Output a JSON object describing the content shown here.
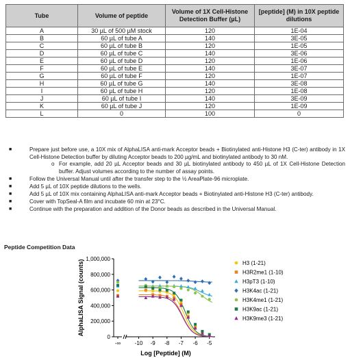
{
  "table": {
    "headers": [
      "Tube",
      "Volume of peptide",
      "Volume of 1X Cell-Histone Detection Buffer (µL)",
      "[peptide] (M) in 10X peptide dilutions"
    ],
    "rows": [
      [
        "A",
        "30 µL of 500 µM stock",
        "120",
        "1E-04"
      ],
      [
        "B",
        "60 µL of tube A",
        "140",
        "3E-05"
      ],
      [
        "C",
        "60 µL of tube B",
        "120",
        "1E-05"
      ],
      [
        "D",
        "60 µL of tube C",
        "140",
        "3E-06"
      ],
      [
        "E",
        "60 µL of tube D",
        "120",
        "1E-06"
      ],
      [
        "F",
        "60 µL of tube E",
        "140",
        "3E-07"
      ],
      [
        "G",
        "60 µL of tube F",
        "120",
        "1E-07"
      ],
      [
        "H",
        "60 µL of tube G",
        "140",
        "3E-08"
      ],
      [
        "I",
        "60 µL of tube H",
        "120",
        "1E-08"
      ],
      [
        "J",
        "60 µL of tube I",
        "140",
        "3E-09"
      ],
      [
        "K",
        "60 µL of tube J",
        "120",
        "1E-09"
      ],
      [
        "L",
        "0",
        "100",
        "0"
      ]
    ]
  },
  "steps": [
    "Prepare just before use, a 10X mix of AlphaLISA anti-mark Acceptor beads + Biotinylated anti-Histone H3 (C-ter) antibody in 1X Cell-Histone Detection buffer by diluting Acceptor beads to 200 µg/mL and biotinylated antibody to 30 nM.",
    "Follow the Universal Manual until after the transfer step to the ½ AreaPlate-96 microplate.",
    "Add 5 µL of 10X peptide dilutions to the wells.",
    "Add 5 µL of 10X mix containing AlphaLISA anti-mark Acceptor beads + Biotinylated anti-Histone H3 (C-ter) antibody.",
    "Cover with TopSeal-A film and incubate 60 min at 23°C.",
    "Continue with the preparation and addition of the Donor beads as described in the Universal Manual."
  ],
  "substep": "For example, add 20 µL Acceptor beads and 30 µL biotinylated antibody to 450 µL of 1X Cell-Histone Detection buffer. Adjust volumes according to the number of assay points.",
  "section_title": "Peptide Competition Data",
  "chart_data": {
    "type": "scatter",
    "xlabel": "Log [Peptide] (M)",
    "ylabel": "AlphaLISA Signal (counts)",
    "xlim": [
      -10.8,
      -4.6
    ],
    "ylim": [
      0,
      1000000
    ],
    "x_ticks": [
      -10,
      -9,
      -8,
      -7,
      -6,
      -5
    ],
    "x_tick_labels": [
      "-10",
      "-9",
      "-8",
      "-7",
      "-6",
      "-5"
    ],
    "x_break_label": "-∞",
    "y_ticks": [
      0,
      200000,
      400000,
      600000,
      800000,
      1000000
    ],
    "y_tick_labels": [
      "0",
      "200,000",
      "400,000",
      "600,000",
      "800,000",
      "1,000,000"
    ],
    "x": [
      -9.5,
      -9,
      -8.5,
      -8,
      -7.5,
      -7,
      -6.5,
      -6,
      -5.5,
      -5
    ],
    "legend_position": "right",
    "series": [
      {
        "name": "H3 (1-21)",
        "color": "#f2c40a",
        "marker": "circle",
        "blank": 590000,
        "values": [
          590000,
          585000,
          580000,
          570000,
          540000,
          450000,
          300000,
          140000,
          55000,
          20000
        ],
        "fit": {
          "top": 590000,
          "bottom": 0,
          "logIC50": -6.8,
          "hill": 1.2
        }
      },
      {
        "name": "H3R2me1 (1-10)",
        "color": "#e8822a",
        "marker": "square",
        "blank": 530000,
        "values": [
          600000,
          540000,
          530000,
          520000,
          500000,
          420000,
          260000,
          120000,
          50000,
          15000
        ],
        "fit": {
          "top": 540000,
          "bottom": 0,
          "logIC50": -6.9,
          "hill": 1.2
        }
      },
      {
        "name": "H3pT3 (1-10)",
        "color": "#34a8df",
        "marker": "triangle",
        "blank": 650000,
        "values": [
          640000,
          650000,
          655000,
          650000,
          655000,
          650000,
          640000,
          620000,
          590000,
          540000
        ],
        "fit": {
          "top": 650000,
          "bottom": 500000,
          "logIC50": -5.6,
          "hill": 1.0
        }
      },
      {
        "name": "H3K4ac (1-21)",
        "color": "#2f6db5",
        "marker": "diamond",
        "blank": 720000,
        "values": [
          740000,
          705000,
          760000,
          700000,
          770000,
          745000,
          720000,
          700000,
          710000,
          690000
        ],
        "fit": {
          "top": 720000,
          "bottom": 700000,
          "logIC50": -6.0,
          "hill": 1.0
        }
      },
      {
        "name": "H3K4me1 (1-21)",
        "color": "#8bc34a",
        "marker": "circle",
        "blank": 700000,
        "values": [
          660000,
          640000,
          630000,
          650000,
          640000,
          620000,
          600000,
          560000,
          520000,
          480000
        ],
        "fit": {
          "top": 650000,
          "bottom": 400000,
          "logIC50": -5.5,
          "hill": 1.0
        }
      },
      {
        "name": "H3K9ac (1-21)",
        "color": "#1f7a4a",
        "marker": "square",
        "blank": 660000,
        "values": [
          640000,
          620000,
          600000,
          595000,
          560000,
          470000,
          320000,
          160000,
          70000,
          30000
        ],
        "fit": {
          "top": 630000,
          "bottom": 0,
          "logIC50": -6.7,
          "hill": 1.2
        }
      },
      {
        "name": "H3K9me3 (1-21)",
        "color": "#8e2a8c",
        "marker": "triangle",
        "blank": 520000,
        "values": [
          500000,
          520000,
          505000,
          510000,
          480000,
          400000,
          250000,
          110000,
          45000,
          15000
        ],
        "fit": {
          "top": 515000,
          "bottom": 0,
          "logIC50": -6.9,
          "hill": 1.2
        }
      }
    ]
  }
}
